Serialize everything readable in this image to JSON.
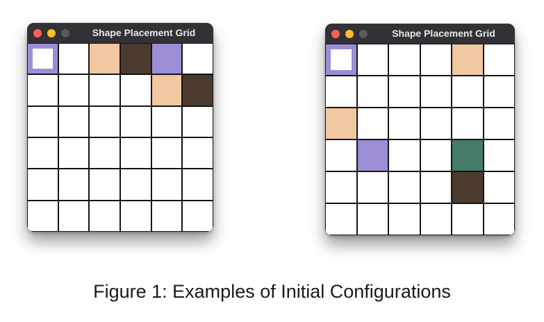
{
  "colors": {
    "empty": "#ffffff",
    "peach": "#f1c8a0",
    "brown": "#4b3a2e",
    "purple": "#9c8dd6",
    "green": "#467b68",
    "close": "#fe5f57",
    "minimize": "#febc2e",
    "zoom": "#5a5a5e"
  },
  "windows": [
    {
      "title": "Shape Placement Grid",
      "grid": [
        [
          "selected",
          "empty",
          "peach",
          "brown",
          "purple",
          "empty"
        ],
        [
          "empty",
          "empty",
          "empty",
          "empty",
          "peach",
          "brown"
        ],
        [
          "empty",
          "empty",
          "empty",
          "empty",
          "empty",
          "empty"
        ],
        [
          "empty",
          "empty",
          "empty",
          "empty",
          "empty",
          "empty"
        ],
        [
          "empty",
          "empty",
          "empty",
          "empty",
          "empty",
          "empty"
        ],
        [
          "empty",
          "empty",
          "empty",
          "empty",
          "empty",
          "empty"
        ]
      ]
    },
    {
      "title": "Shape Placement Grid",
      "grid": [
        [
          "selected",
          "empty",
          "empty",
          "empty",
          "peach",
          "empty"
        ],
        [
          "empty",
          "empty",
          "empty",
          "empty",
          "empty",
          "empty"
        ],
        [
          "peach",
          "empty",
          "empty",
          "empty",
          "empty",
          "empty"
        ],
        [
          "empty",
          "purple",
          "empty",
          "empty",
          "green",
          "empty"
        ],
        [
          "empty",
          "empty",
          "empty",
          "empty",
          "brown",
          "empty"
        ],
        [
          "empty",
          "empty",
          "empty",
          "empty",
          "empty",
          "empty"
        ]
      ]
    }
  ],
  "caption": "Figure 1: Examples of Initial Configurations"
}
